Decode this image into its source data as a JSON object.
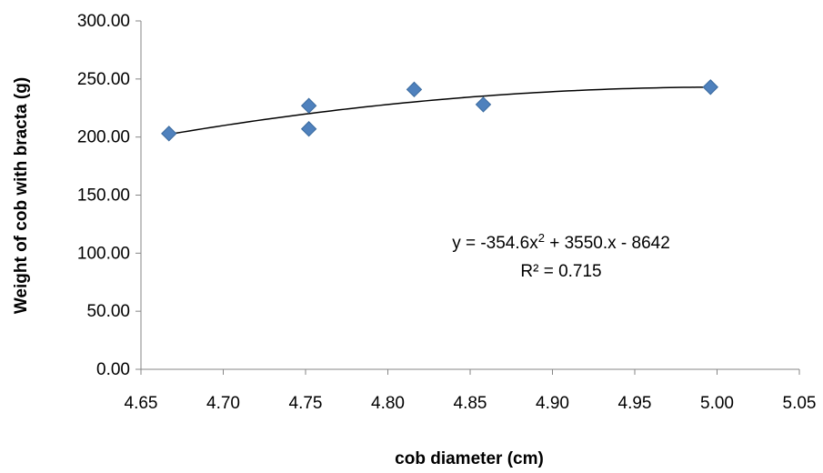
{
  "chart_data": {
    "type": "scatter",
    "xlabel": "cob diameter (cm)",
    "ylabel": "Weight of cob with bracta (g)",
    "xlim": [
      4.65,
      5.05
    ],
    "ylim": [
      0,
      300
    ],
    "x_ticks": [
      "4.65",
      "4.70",
      "4.75",
      "4.80",
      "4.85",
      "4.90",
      "4.95",
      "5.00",
      "5.05"
    ],
    "y_ticks": [
      "0.00",
      "50.00",
      "100.00",
      "150.00",
      "200.00",
      "250.00",
      "300.00"
    ],
    "grid": false,
    "marker_color": "#4F81BD",
    "trendline_color": "#000000",
    "series": [
      {
        "points": [
          {
            "x": 4.667,
            "y": 203
          },
          {
            "x": 4.752,
            "y": 227
          },
          {
            "x": 4.752,
            "y": 207
          },
          {
            "x": 4.816,
            "y": 241
          },
          {
            "x": 4.858,
            "y": 228
          },
          {
            "x": 4.996,
            "y": 243
          }
        ]
      }
    ],
    "trendline": {
      "type": "polynomial",
      "coefficients": [
        -354.6,
        3550,
        -8642
      ],
      "x_range": [
        4.667,
        4.996
      ],
      "equation_text_main": "y = -354.6x",
      "equation_text_exp": "2",
      "equation_text_rest": " + 3550.x - 8642",
      "r2_text": "R² = 0.715"
    }
  }
}
